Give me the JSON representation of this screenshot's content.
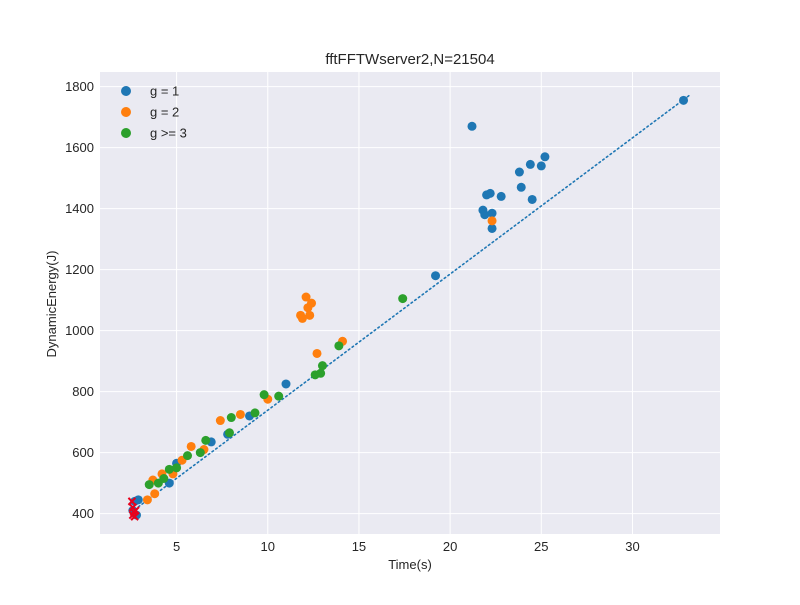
{
  "chart_data": {
    "type": "scatter",
    "title": "fftFFTWserver2,N=21504",
    "xlabel": "Time(s)",
    "ylabel": "DynamicEnergy(J)",
    "xlim": [
      0.8,
      34.8
    ],
    "ylim": [
      333,
      1848
    ],
    "xticks": [
      5,
      10,
      15,
      20,
      25,
      30
    ],
    "yticks": [
      400,
      600,
      800,
      1000,
      1200,
      1400,
      1600,
      1800
    ],
    "grid": true,
    "legend_position": "top-left",
    "colors": {
      "g1": "#1f77b4",
      "g2": "#ff7f0e",
      "g3": "#2ca02c",
      "fit": "#1f77b4",
      "marker": "#e8001c",
      "background": "#eaeaf2"
    },
    "series": [
      {
        "name": "g = 1",
        "color": "#1f77b4",
        "x": [
          2.6,
          2.7,
          2.8,
          2.9,
          4.6,
          5.0,
          6.9,
          7.8,
          9.0,
          11.0,
          19.2,
          21.2,
          21.8,
          21.9,
          22.0,
          22.2,
          22.3,
          22.3,
          22.8,
          23.8,
          23.9,
          24.4,
          24.5,
          25.0,
          25.2,
          32.8
        ],
        "y": [
          410,
          440,
          395,
          445,
          500,
          565,
          635,
          660,
          720,
          825,
          1180,
          1670,
          1395,
          1380,
          1445,
          1450,
          1385,
          1335,
          1440,
          1520,
          1470,
          1545,
          1430,
          1540,
          1570,
          1755
        ]
      },
      {
        "name": "g = 2",
        "color": "#ff7f0e",
        "x": [
          3.4,
          3.7,
          3.8,
          4.2,
          4.8,
          5.3,
          5.8,
          6.5,
          7.4,
          8.5,
          10.0,
          11.8,
          11.9,
          12.1,
          12.2,
          12.3,
          12.4,
          12.7,
          14.1,
          22.3
        ],
        "y": [
          445,
          510,
          465,
          530,
          530,
          575,
          620,
          610,
          705,
          725,
          775,
          1050,
          1040,
          1110,
          1075,
          1050,
          1090,
          925,
          965,
          1360
        ]
      },
      {
        "name": "g >= 3",
        "color": "#2ca02c",
        "x": [
          3.5,
          4.0,
          4.3,
          4.6,
          5.0,
          5.6,
          6.3,
          6.6,
          7.9,
          8.0,
          9.3,
          9.8,
          10.6,
          12.6,
          12.9,
          13.0,
          13.9,
          17.4
        ],
        "y": [
          495,
          500,
          515,
          545,
          550,
          590,
          600,
          640,
          665,
          715,
          730,
          790,
          785,
          855,
          860,
          885,
          950,
          1105
        ]
      }
    ],
    "fit_line": {
      "x": [
        2.5,
        33.2
      ],
      "y": [
        404,
        1775
      ]
    },
    "red_markers": {
      "x": [
        2.55,
        2.6,
        2.65,
        2.7,
        2.6,
        2.75
      ],
      "y": [
        440,
        420,
        405,
        390,
        395,
        410
      ]
    }
  }
}
